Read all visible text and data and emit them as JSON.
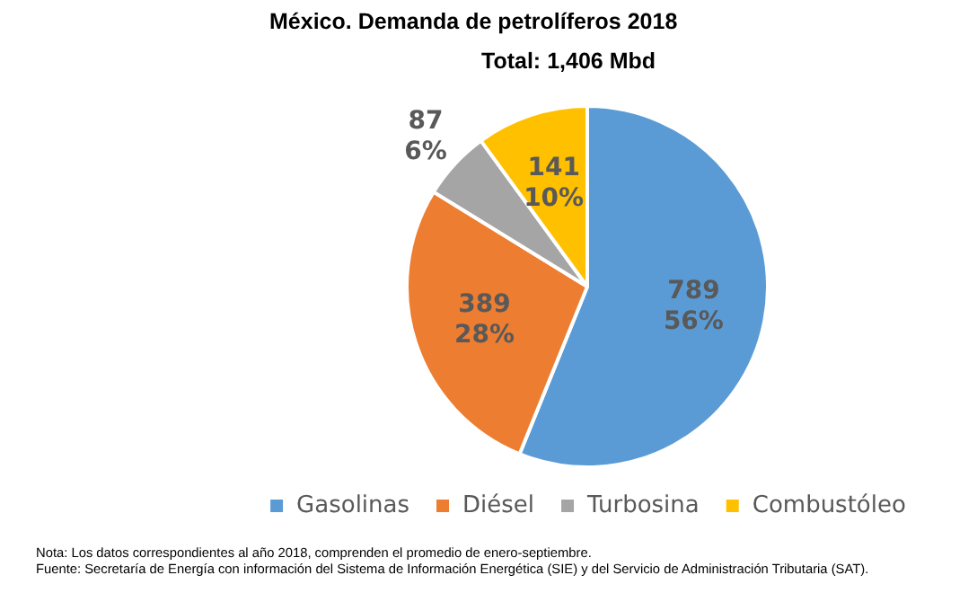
{
  "chart_data": {
    "type": "pie",
    "title": "México. Demanda de petrolíferos 2018",
    "subtitle": "Total: 1,406 Mbd",
    "categories": [
      "Gasolinas",
      "Diésel",
      "Turbosina",
      "Combustóleo"
    ],
    "values": [
      789,
      389,
      87,
      141
    ],
    "colors": [
      "#5b9bd5",
      "#ed7d31",
      "#a5a5a5",
      "#ffc000"
    ],
    "value_labels": [
      "789\n56%",
      "389\n28%",
      "87\n6%",
      "141\n10%"
    ],
    "legend": "bottom",
    "annotations": [
      "Nota: Los datos correspondientes al año 2018, comprenden el promedio de enero-septiembre.",
      "Fuente: Secretaría de Energía con información del Sistema de Información Energética (SIE) y del Servicio de Administración Tributaria (SAT)."
    ]
  }
}
